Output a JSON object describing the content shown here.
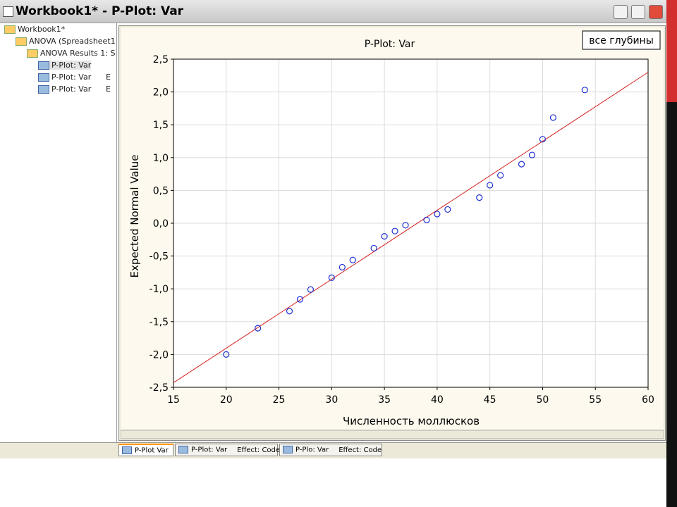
{
  "window": {
    "title": "Workbook1* - P-Plot: Var"
  },
  "tree": [
    {
      "label": "Workbook1*",
      "level": 0
    },
    {
      "label": "ANOVA (Spreadsheet1",
      "level": 1
    },
    {
      "label": "ANOVA Results 1: S",
      "level": 2
    },
    {
      "label": "P-Plot: Var",
      "level": 3
    },
    {
      "label": "P-Plot: Var",
      "level": 3,
      "extra": "E"
    },
    {
      "label": "P-Plot: Var",
      "level": 3,
      "extra": "E"
    }
  ],
  "tabs": [
    {
      "label": "P-Plot Var"
    },
    {
      "label": "P-Plot: Var",
      "effect": "Effect: Code"
    },
    {
      "label": "P-Plo: Var",
      "effect": "Effect: Code"
    }
  ],
  "chart_data": {
    "type": "scatter",
    "title": "P-Plot: Var",
    "legend_label": "все глубины",
    "xlabel": "Численность моллюсков",
    "ylabel": "Expected Normal Value",
    "color": "#1f2fd0",
    "line_color": "#d42020",
    "grid": true,
    "x": [
      20,
      23,
      26,
      27,
      28,
      30,
      31,
      32,
      34,
      35,
      36,
      37,
      39,
      40,
      41,
      44,
      45,
      46,
      48,
      49,
      50,
      51,
      54
    ],
    "values": [
      -2.0,
      -1.6,
      -1.34,
      -1.16,
      -1.01,
      -0.83,
      -0.67,
      -0.56,
      -0.38,
      -0.2,
      -0.12,
      -0.03,
      0.05,
      0.14,
      0.21,
      0.39,
      0.58,
      0.73,
      0.9,
      1.04,
      1.28,
      1.61,
      2.03
    ],
    "fit_line": {
      "x": [
        15,
        60
      ],
      "values": [
        -2.43,
        2.3
      ]
    },
    "xlim": [
      15,
      60
    ],
    "xticks": [
      15,
      20,
      25,
      30,
      35,
      40,
      45,
      50,
      55,
      60
    ],
    "ylim": [
      -2.5,
      2.5
    ],
    "yticks": [
      {
        "value": -2.5,
        "label": "-2,5"
      },
      {
        "value": -2,
        "label": "-2,0"
      },
      {
        "value": -1.5,
        "label": "-1,5"
      },
      {
        "value": -1,
        "label": "-1,0"
      },
      {
        "value": -0.5,
        "label": "-0,5"
      },
      {
        "value": 0,
        "label": "0,0"
      },
      {
        "value": 0.5,
        "label": "0,5"
      },
      {
        "value": 1,
        "label": "1,0"
      },
      {
        "value": 1.5,
        "label": "1,5"
      },
      {
        "value": 2,
        "label": "2,0"
      },
      {
        "value": 2.5,
        "label": "2,5"
      }
    ]
  }
}
